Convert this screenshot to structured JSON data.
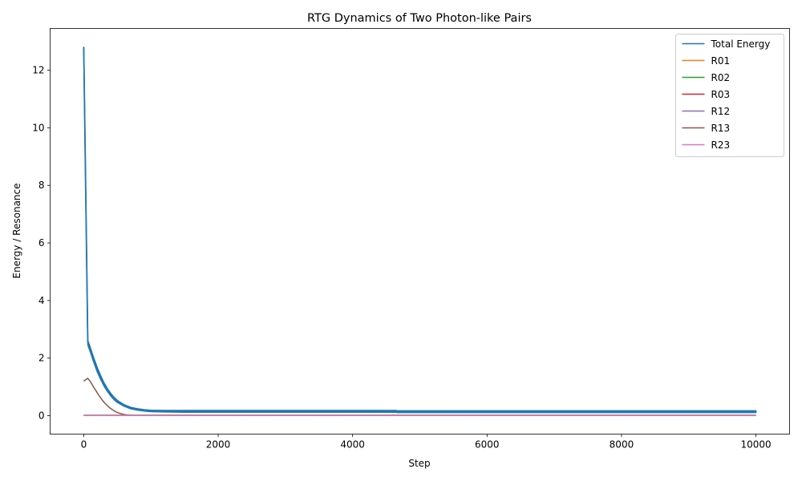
{
  "chart_data": {
    "type": "line",
    "title": "RTG Dynamics of Two Photon-like Pairs",
    "xlabel": "Step",
    "ylabel": "Energy / Resonance",
    "xlim": [
      -500,
      10500
    ],
    "ylim": [
      -0.64,
      13.45
    ],
    "xticks": [
      0,
      2000,
      4000,
      6000,
      8000,
      10000
    ],
    "yticks": [
      0,
      2,
      4,
      6,
      8,
      10,
      12
    ],
    "grid": false,
    "legend_position": "top-right",
    "series": [
      {
        "name": "Total Energy",
        "color": "#1f77b4",
        "band": true,
        "x": [
          0,
          60,
          62,
          100,
          150,
          200,
          250,
          300,
          350,
          400,
          450,
          500,
          600,
          700,
          800,
          900,
          1000,
          1200,
          1500,
          2000,
          3000,
          4000,
          4650,
          4660,
          6000,
          8000,
          10000
        ],
        "upper": [
          12.8,
          2.6,
          2.6,
          2.35,
          2.0,
          1.68,
          1.4,
          1.15,
          0.95,
          0.78,
          0.64,
          0.53,
          0.38,
          0.29,
          0.24,
          0.21,
          0.19,
          0.18,
          0.18,
          0.18,
          0.18,
          0.18,
          0.18,
          0.17,
          0.17,
          0.17,
          0.17
        ],
        "lower": [
          12.8,
          2.6,
          2.45,
          2.2,
          1.85,
          1.53,
          1.27,
          1.04,
          0.85,
          0.69,
          0.56,
          0.46,
          0.33,
          0.24,
          0.19,
          0.16,
          0.14,
          0.13,
          0.12,
          0.12,
          0.12,
          0.12,
          0.12,
          0.11,
          0.11,
          0.11,
          0.11
        ]
      },
      {
        "name": "R01",
        "color": "#ff7f0e",
        "x": [
          0,
          10000
        ],
        "y": [
          0.01,
          0.01
        ]
      },
      {
        "name": "R02",
        "color": "#2ca02c",
        "x": [
          0,
          10000
        ],
        "y": [
          0.01,
          0.01
        ]
      },
      {
        "name": "R03",
        "color": "#d62728",
        "x": [
          0,
          10000
        ],
        "y": [
          0.01,
          0.01
        ]
      },
      {
        "name": "R12",
        "color": "#9467bd",
        "x": [
          0,
          10000
        ],
        "y": [
          0.01,
          0.01
        ]
      },
      {
        "name": "R13",
        "color": "#8c564b",
        "x": [
          0,
          30,
          60,
          100,
          150,
          200,
          250,
          300,
          350,
          400,
          450,
          500,
          550,
          600,
          650,
          700,
          800,
          1000,
          10000
        ],
        "y": [
          1.2,
          1.25,
          1.3,
          1.18,
          0.98,
          0.8,
          0.62,
          0.47,
          0.35,
          0.25,
          0.17,
          0.11,
          0.07,
          0.04,
          0.025,
          0.015,
          0.01,
          0.01,
          0.01
        ]
      },
      {
        "name": "R23",
        "color": "#e377c2",
        "x": [
          0,
          10000
        ],
        "y": [
          0.01,
          0.01
        ]
      }
    ]
  }
}
